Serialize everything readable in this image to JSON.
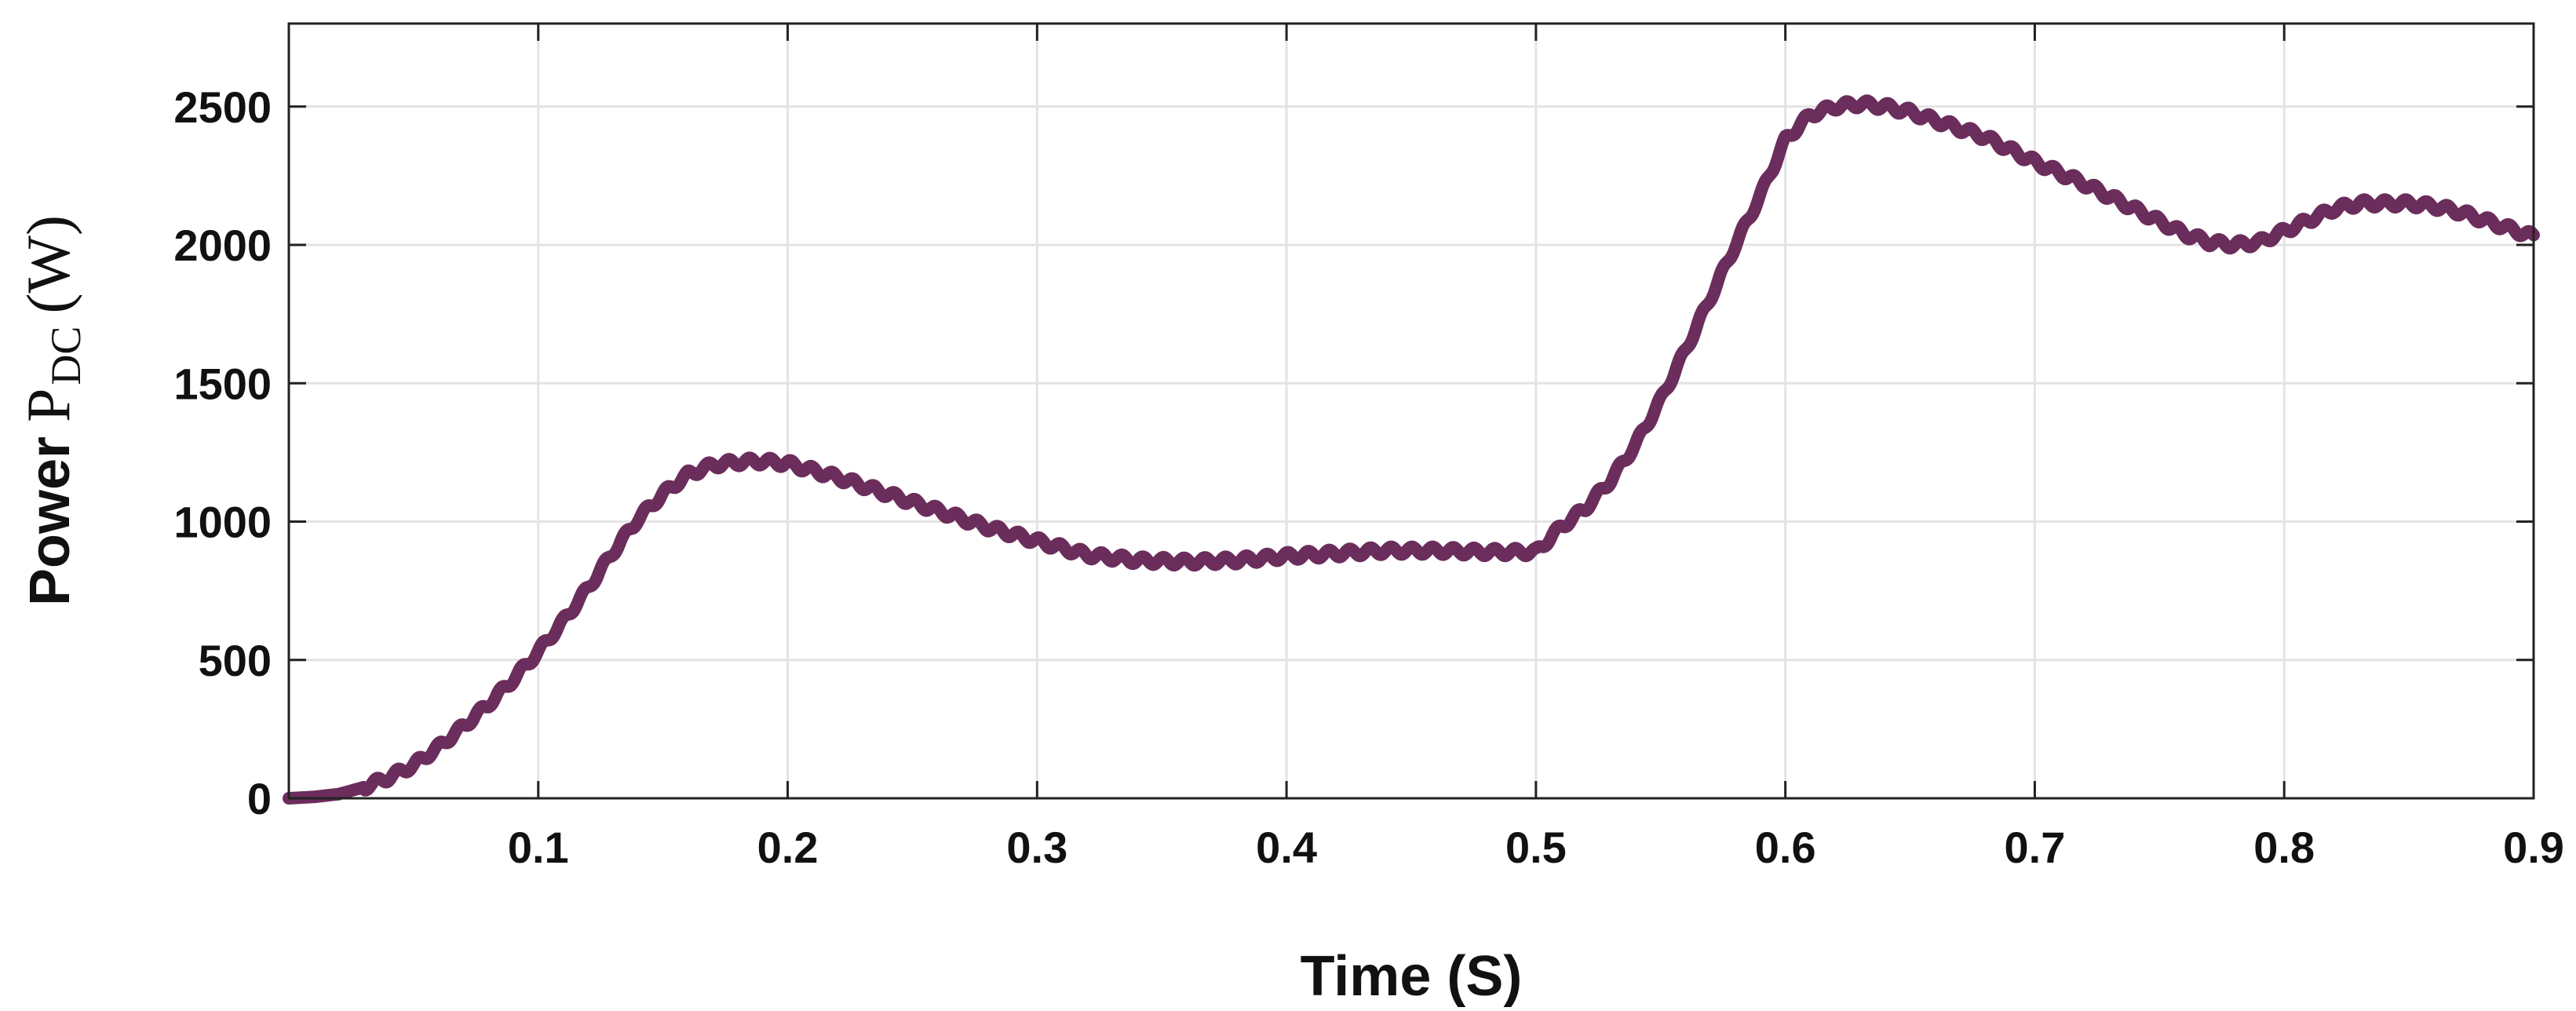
{
  "chart_data": {
    "type": "line",
    "title": "",
    "xlabel": "Time (S)",
    "ylabel": {
      "prefix": "Power",
      "symbol": "P",
      "subscript": "DC",
      "unit": "(W)"
    },
    "xlim": [
      0,
      0.9
    ],
    "ylim": [
      0,
      2800
    ],
    "xticks": [
      0.1,
      0.2,
      0.3,
      0.4,
      0.5,
      0.6,
      0.7,
      0.8,
      0.9
    ],
    "xtick_labels": [
      "0.1",
      "0.2",
      "0.3",
      "0.4",
      "0.5",
      "0.6",
      "0.7",
      "0.8",
      "0.9"
    ],
    "yticks": [
      0,
      500,
      1000,
      1500,
      2000,
      2500
    ],
    "ytick_labels": [
      "0",
      "500",
      "1000",
      "1500",
      "2000",
      "2500"
    ],
    "grid": true,
    "legend": "none",
    "series": [
      {
        "color": "#6b2d5c",
        "x": [
          0,
          0.01,
          0.02,
          0.03,
          0.04,
          0.05,
          0.06,
          0.07,
          0.08,
          0.09,
          0.1,
          0.11,
          0.12,
          0.13,
          0.14,
          0.15,
          0.16,
          0.17,
          0.18,
          0.19,
          0.2,
          0.22,
          0.24,
          0.26,
          0.28,
          0.3,
          0.32,
          0.34,
          0.36,
          0.38,
          0.4,
          0.42,
          0.44,
          0.46,
          0.48,
          0.5,
          0.51,
          0.52,
          0.53,
          0.54,
          0.55,
          0.56,
          0.57,
          0.58,
          0.59,
          0.6,
          0.61,
          0.62,
          0.63,
          0.64,
          0.65,
          0.66,
          0.68,
          0.7,
          0.72,
          0.74,
          0.76,
          0.77,
          0.78,
          0.79,
          0.8,
          0.81,
          0.82,
          0.83,
          0.84,
          0.85,
          0.86,
          0.87,
          0.88,
          0.89,
          0.9
        ],
        "y": [
          0,
          5,
          15,
          40,
          75,
          120,
          185,
          260,
          340,
          430,
          530,
          640,
          760,
          890,
          1010,
          1100,
          1170,
          1205,
          1215,
          1218,
          1210,
          1160,
          1100,
          1040,
          980,
          930,
          880,
          860,
          855,
          860,
          875,
          885,
          895,
          895,
          890,
          890,
          980,
          1050,
          1150,
          1280,
          1440,
          1620,
          1810,
          2000,
          2180,
          2380,
          2470,
          2500,
          2510,
          2500,
          2480,
          2450,
          2390,
          2300,
          2220,
          2130,
          2040,
          2010,
          2000,
          2010,
          2050,
          2090,
          2130,
          2150,
          2150,
          2150,
          2140,
          2120,
          2090,
          2060,
          2030
        ]
      }
    ]
  }
}
